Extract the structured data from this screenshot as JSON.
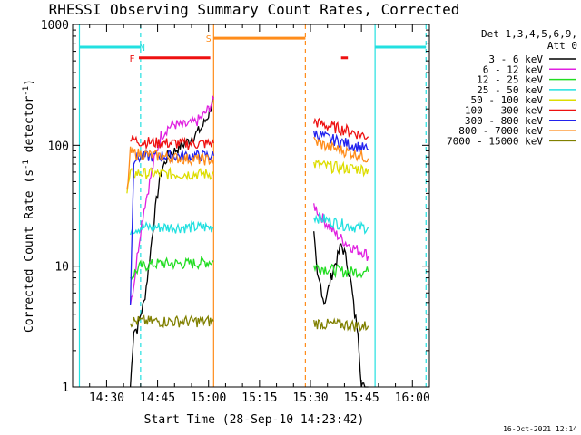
{
  "chart_data": {
    "type": "line",
    "title": "RHESSI Observing Summary Count Rates, Corrected",
    "xlabel": "Start Time (28-Sep-10 14:23:42)",
    "ylabel_pre": "Corrected Count Rate (s",
    "ylabel_sup1": "-1",
    "ylabel_mid": " detector",
    "ylabel_sup2": "-1",
    "ylabel_post": ")",
    "x_unit": "minutes after 14:00 UT",
    "xlim": [
      20,
      125
    ],
    "ylim": [
      1,
      1000
    ],
    "y_scale": "log",
    "x_ticks": [
      {
        "v": 30,
        "label": "14:30"
      },
      {
        "v": 45,
        "label": "14:45"
      },
      {
        "v": 60,
        "label": "15:00"
      },
      {
        "v": 75,
        "label": "15:15"
      },
      {
        "v": 90,
        "label": "15:30"
      },
      {
        "v": 105,
        "label": "15:45"
      },
      {
        "v": 120,
        "label": "16:00"
      }
    ],
    "y_ticks": [
      {
        "v": 1,
        "label": "1"
      },
      {
        "v": 10,
        "label": "10"
      },
      {
        "v": 100,
        "label": "100"
      },
      {
        "v": 1000,
        "label": "1000"
      }
    ],
    "legend_header": [
      "Det 1,3,4,5,6,9,",
      "Att 0"
    ],
    "legend_placement": "right",
    "timestamp": "16-Oct-2021 12:14",
    "attenuator_state": {
      "value": 0,
      "label": "Att 0"
    },
    "flags": [
      {
        "label": "F",
        "color": "#ee1111",
        "y": 530,
        "spans": [
          [
            39.5,
            60.5
          ],
          [
            99,
            101
          ]
        ]
      },
      {
        "label": "N",
        "color": "#22e0e0",
        "y": 650,
        "spans": [
          [
            22,
            40
          ],
          [
            109,
            124
          ]
        ]
      },
      {
        "label": "S",
        "color": "#ff8c1a",
        "y": 770,
        "spans": [
          [
            61.5,
            88.5
          ]
        ]
      }
    ],
    "flag_markers": [
      {
        "label": "F",
        "x": 37.5,
        "y": 530,
        "color": "#ee1111"
      },
      {
        "label": "N",
        "x": 40.5,
        "y": 650,
        "color": "#22e0e0"
      },
      {
        "label": "S",
        "x": 60,
        "y": 770,
        "color": "#ff8c1a"
      }
    ],
    "vlines": [
      {
        "x": 22,
        "color": "#22e0e0",
        "style": "solid"
      },
      {
        "x": 40,
        "color": "#22e0e0",
        "style": "dashed"
      },
      {
        "x": 61.5,
        "color": "#ff8c1a",
        "style": "solid"
      },
      {
        "x": 88.5,
        "color": "#ff8c1a",
        "style": "dashed"
      },
      {
        "x": 109,
        "color": "#22e0e0",
        "style": "solid"
      },
      {
        "x": 124,
        "color": "#22e0e0",
        "style": "dashed"
      }
    ],
    "series": [
      {
        "name": "3 - 6 keV",
        "color": "#000000",
        "segments": [
          [
            [
              37,
              1
            ],
            [
              38,
              3
            ],
            [
              39,
              3
            ],
            [
              40,
              4
            ],
            [
              41,
              5
            ],
            [
              42,
              8
            ],
            [
              43,
              14
            ],
            [
              44,
              25
            ],
            [
              45,
              40
            ],
            [
              46,
              60
            ],
            [
              48,
              82
            ],
            [
              50,
              90
            ],
            [
              52,
              100
            ],
            [
              54,
              108
            ],
            [
              56,
              122
            ],
            [
              58,
              140
            ],
            [
              60,
              180
            ],
            [
              61.5,
              250
            ]
          ],
          [
            [
              91,
              18
            ],
            [
              92,
              8
            ],
            [
              93,
              7
            ],
            [
              94,
              5
            ],
            [
              95,
              6
            ],
            [
              96,
              8
            ],
            [
              97,
              10
            ],
            [
              98,
              12
            ],
            [
              99,
              15
            ],
            [
              100,
              13
            ],
            [
              101,
              10
            ],
            [
              102,
              7
            ],
            [
              103,
              4
            ],
            [
              104,
              3
            ],
            [
              105,
              1
            ],
            [
              106,
              1
            ],
            [
              107,
              1
            ]
          ]
        ]
      },
      {
        "name": "6 - 12 keV",
        "color": "#e020e0",
        "segments": [
          [
            [
              37,
              5
            ],
            [
              38,
              7
            ],
            [
              39,
              12
            ],
            [
              40,
              20
            ],
            [
              41,
              30
            ],
            [
              42,
              40
            ],
            [
              43,
              55
            ],
            [
              44,
              75
            ],
            [
              45,
              95
            ],
            [
              46,
              120
            ],
            [
              48,
              140
            ],
            [
              50,
              150
            ],
            [
              52,
              145
            ],
            [
              54,
              148
            ],
            [
              56,
              155
            ],
            [
              58,
              170
            ],
            [
              60,
              200
            ],
            [
              61.5,
              240
            ]
          ],
          [
            [
              91,
              32
            ],
            [
              94,
              24
            ],
            [
              97,
              19
            ],
            [
              100,
              16
            ],
            [
              103,
              14
            ],
            [
              106,
              13
            ],
            [
              107,
              12
            ]
          ]
        ]
      },
      {
        "name": "12 - 25 keV",
        "color": "#22dd22",
        "segments": [
          [
            [
              37,
              8
            ],
            [
              40,
              10
            ],
            [
              45,
              10.5
            ],
            [
              50,
              10.5
            ],
            [
              55,
              10.5
            ],
            [
              61.5,
              11
            ]
          ],
          [
            [
              91,
              10
            ],
            [
              95,
              9.5
            ],
            [
              100,
              9
            ],
            [
              104,
              9
            ],
            [
              107,
              9
            ]
          ]
        ]
      },
      {
        "name": "25 - 50 keV",
        "color": "#22e0e0",
        "segments": [
          [
            [
              37,
              20
            ],
            [
              40,
              21
            ],
            [
              45,
              21
            ],
            [
              50,
              21
            ],
            [
              55,
              21
            ],
            [
              61.5,
              21
            ]
          ],
          [
            [
              91,
              26
            ],
            [
              95,
              24
            ],
            [
              100,
              22
            ],
            [
              104,
              21
            ],
            [
              107,
              21
            ]
          ]
        ]
      },
      {
        "name": "50 - 100 keV",
        "color": "#dddd00",
        "segments": [
          [
            [
              36,
              40
            ],
            [
              37,
              58
            ],
            [
              40,
              59
            ],
            [
              45,
              58
            ],
            [
              50,
              58
            ],
            [
              55,
              58
            ],
            [
              61.5,
              58
            ]
          ],
          [
            [
              91,
              70
            ],
            [
              95,
              67
            ],
            [
              100,
              65
            ],
            [
              104,
              64
            ],
            [
              107,
              63
            ]
          ]
        ]
      },
      {
        "name": "100 - 300 keV",
        "color": "#ee1111",
        "segments": [
          [
            [
              37,
              112
            ],
            [
              40,
              108
            ],
            [
              45,
              105
            ],
            [
              50,
              104
            ],
            [
              55,
              103
            ],
            [
              61.5,
              104
            ]
          ],
          [
            [
              91,
              158
            ],
            [
              95,
              145
            ],
            [
              100,
              135
            ],
            [
              104,
              125
            ],
            [
              107,
              118
            ]
          ]
        ]
      },
      {
        "name": "300 - 800 keV",
        "color": "#2222ee",
        "segments": [
          [
            [
              37,
              5
            ],
            [
              38,
              78
            ],
            [
              40,
              80
            ],
            [
              45,
              82
            ],
            [
              50,
              82
            ],
            [
              55,
              82
            ],
            [
              61.5,
              82
            ]
          ],
          [
            [
              91,
              128
            ],
            [
              95,
              115
            ],
            [
              100,
              105
            ],
            [
              104,
              98
            ],
            [
              107,
              92
            ]
          ]
        ]
      },
      {
        "name": "800 - 7000 keV",
        "color": "#ff8c1a",
        "segments": [
          [
            [
              36,
              40
            ],
            [
              37,
              88
            ],
            [
              40,
              85
            ],
            [
              45,
              82
            ],
            [
              50,
              79
            ],
            [
              55,
              77
            ],
            [
              61.5,
              76
            ]
          ],
          [
            [
              91,
              108
            ],
            [
              95,
              98
            ],
            [
              100,
              90
            ],
            [
              104,
              84
            ],
            [
              107,
              78
            ]
          ]
        ]
      },
      {
        "name": "7000 - 15000 keV",
        "color": "#808000",
        "segments": [
          [
            [
              37,
              3.5
            ],
            [
              40,
              3.5
            ],
            [
              45,
              3.5
            ],
            [
              50,
              3.5
            ],
            [
              55,
              3.5
            ],
            [
              61.5,
              3.5
            ]
          ],
          [
            [
              91,
              3.4
            ],
            [
              95,
              3.3
            ],
            [
              100,
              3.3
            ],
            [
              104,
              3.2
            ],
            [
              107,
              3.2
            ]
          ]
        ]
      }
    ]
  }
}
